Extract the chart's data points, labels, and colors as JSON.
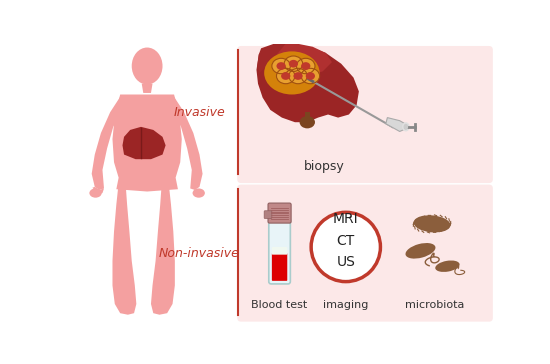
{
  "bg_color": "#ffffff",
  "panel_bg": "#fce8e8",
  "divider_color": "#c0392b",
  "label_invasive": "Invasive",
  "label_noninvasive": "Non-invasive",
  "label_biopsy": "biopsy",
  "label_blood": "Blood test",
  "label_imaging": "imaging",
  "label_microbiota": "microbiota",
  "label_mri": "MRI\nCT\nUS",
  "label_color": "#c0392b",
  "text_color": "#333333",
  "body_color": "#f4a0a0",
  "liver_dark": "#8B2020",
  "liver_mid": "#9B2525",
  "liver_light": "#b03030",
  "tumor_orange": "#E8A030",
  "tumor_cell_red": "#c0392b",
  "tumor_bg": "#D4820A",
  "needle_color": "#aaaaaa",
  "blood_color": "#dd0000",
  "tube_glass": "#e8f4f8",
  "tube_outline": "#aacccc",
  "tube_cap_color": "#c08888",
  "imaging_circle_color": "#c0392b",
  "bacteria_color": "#8B5E3C",
  "figure_width": 5.5,
  "figure_height": 3.64
}
